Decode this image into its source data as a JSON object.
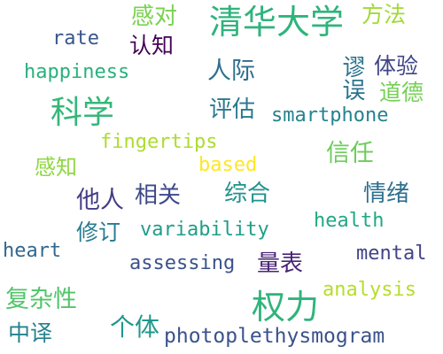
{
  "words": [
    {
      "id": "qinghuadaxue",
      "text": "清华大学",
      "color": "#2fb47c"
    },
    {
      "id": "quanli",
      "text": "权力",
      "color": "#2fb47c"
    },
    {
      "id": "kexue",
      "text": "科学",
      "color": "#35b779"
    },
    {
      "id": "photoplethysmogram",
      "text": "photoplethysmogram",
      "color": "#3b528b"
    },
    {
      "id": "ganzhi",
      "text": "感知",
      "color": "#90d743"
    },
    {
      "id": "gandui",
      "text": "感对",
      "color": "#7ad151"
    },
    {
      "id": "fangfa",
      "text": "方法",
      "color": "#a2da37"
    },
    {
      "id": "rate",
      "text": "rate",
      "color": "#39558c"
    },
    {
      "id": "renzhi",
      "text": "认知",
      "color": "#440154"
    },
    {
      "id": "happiness",
      "text": "happiness",
      "color": "#2ab07f"
    },
    {
      "id": "renji",
      "text": "人际",
      "color": "#2e6e8e"
    },
    {
      "id": "tiyan",
      "text": "体验",
      "color": "#404688"
    },
    {
      "id": "miuwu",
      "text": "谬误",
      "color": "#2c728e"
    },
    {
      "id": "daode",
      "text": "道德",
      "color": "#75d054"
    },
    {
      "id": "pinggu",
      "text": "评估",
      "color": "#2a788e"
    },
    {
      "id": "smartphone",
      "text": "smartphone",
      "color": "#25838e"
    },
    {
      "id": "fingertips",
      "text": "fingertips",
      "color": "#addc30"
    },
    {
      "id": "based",
      "text": "based",
      "color": "#fde725"
    },
    {
      "id": "xinren",
      "text": "信任",
      "color": "#6ccd5a"
    },
    {
      "id": "taren",
      "text": "他人",
      "color": "#433e85"
    },
    {
      "id": "xiangguan",
      "text": "相关",
      "color": "#3e4989"
    },
    {
      "id": "zonghe",
      "text": "综合",
      "color": "#21918c"
    },
    {
      "id": "qingxu",
      "text": "情绪",
      "color": "#2d708e"
    },
    {
      "id": "xiuding",
      "text": "修订",
      "color": "#287c8e"
    },
    {
      "id": "variability",
      "text": "variability",
      "color": "#1f9e89"
    },
    {
      "id": "health",
      "text": "health",
      "color": "#22a884"
    },
    {
      "id": "heart",
      "text": "heart",
      "color": "#31688e"
    },
    {
      "id": "assessing",
      "text": "assessing",
      "color": "#3b528b"
    },
    {
      "id": "liangbiao",
      "text": "量表",
      "color": "#482475"
    },
    {
      "id": "mental",
      "text": "mental",
      "color": "#414487"
    },
    {
      "id": "analysis",
      "text": "analysis",
      "color": "#b5de2b"
    },
    {
      "id": "fuzaxing",
      "text": "复杂性",
      "color": "#52c569"
    },
    {
      "id": "zhongyi",
      "text": "中译",
      "color": "#26828e"
    },
    {
      "id": "geti",
      "text": "个体",
      "color": "#1f988b"
    }
  ]
}
